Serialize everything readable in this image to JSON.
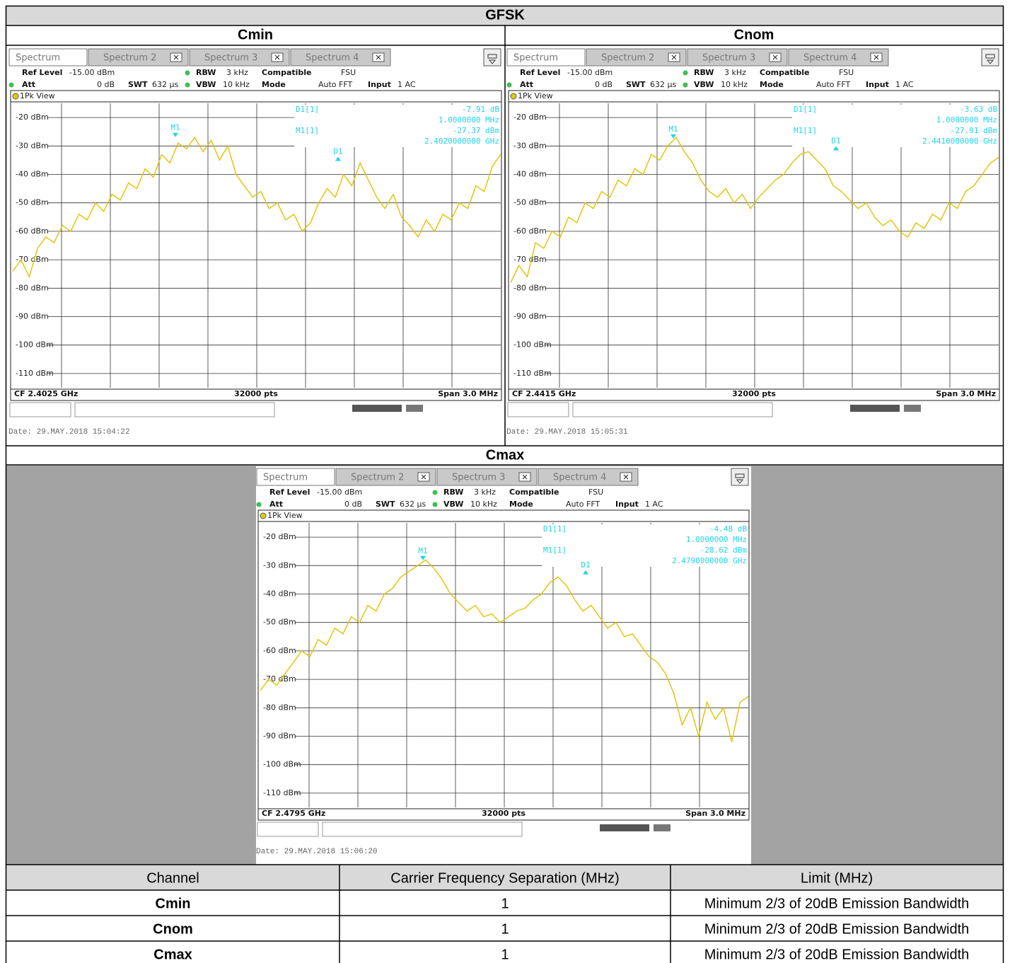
{
  "title": "GFSK",
  "analyzer": {
    "tabs": [
      "Spectrum",
      "Spectrum 2",
      "Spectrum 3",
      "Spectrum 4"
    ],
    "info": [
      {
        "label": "Ref Level",
        "value": "-15.00 dBm"
      },
      {
        "label": "RBW",
        "value": "3 kHz"
      },
      {
        "label": "Compatible",
        "value": "FSU"
      },
      {
        "label": "Att",
        "value": "0 dB"
      },
      {
        "label": "SWT",
        "value": "632 µs"
      },
      {
        "label": "VBW",
        "value": "10 kHz"
      },
      {
        "label": "Mode",
        "value": "Auto FFT"
      },
      {
        "label": "Input",
        "value": "1 AC"
      }
    ],
    "view": "1Pk View",
    "points": "32000 pts",
    "marker_names": {
      "m1": "M1",
      "d1": "D1",
      "m1_row": "M1[1]",
      "d1_row": "D1[1]"
    },
    "ylim": [
      -115,
      -15
    ],
    "yticks": [
      {
        "value": -20,
        "label": "-20 dBm"
      },
      {
        "value": -30,
        "label": "-30 dBm"
      },
      {
        "value": -40,
        "label": "-40 dBm"
      },
      {
        "value": -50,
        "label": "-50 dBm"
      },
      {
        "value": -60,
        "label": "-60 dBm"
      },
      {
        "value": -70,
        "label": "-70 dBm"
      },
      {
        "value": -80,
        "label": "-80 dBm"
      },
      {
        "value": -90,
        "label": "-90 dBm"
      },
      {
        "value": -100,
        "label": "-100 dBm"
      },
      {
        "value": -110,
        "label": "-110 dBm"
      }
    ]
  },
  "panels": [
    {
      "title": "Cmin",
      "cf": {
        "value": 2.4025,
        "label": "CF 2.4025 GHz"
      },
      "span": {
        "value": 3.0,
        "label": "Span 3.0 MHz"
      },
      "d1": {
        "value": -7.91,
        "label": "-7.91 dB"
      },
      "d1_offset": {
        "value": 1.0,
        "label": "1.0000000 MHz"
      },
      "m1": {
        "value": -27.37,
        "label": "-27.37 dBm"
      },
      "m1_freq": {
        "value": 2.402,
        "label": "2.4020000000 GHz"
      },
      "date": "Date: 29.MAY.2018  15:04:22",
      "trace": [
        -74,
        -70,
        -76,
        -66,
        -62,
        -64,
        -58,
        -60,
        -54,
        -56,
        -50,
        -53,
        -47,
        -49,
        -43,
        -45,
        -38,
        -41,
        -33,
        -36,
        -29,
        -31,
        -27,
        -32,
        -28,
        -35,
        -30,
        -40,
        -44,
        -48,
        -46,
        -52,
        -50,
        -56,
        -54,
        -60,
        -57,
        -50,
        -45,
        -48,
        -40,
        -44,
        -36,
        -42,
        -48,
        -52,
        -47,
        -55,
        -58,
        -62,
        -56,
        -60,
        -54,
        -56,
        -50,
        -52,
        -44,
        -46,
        -37,
        -33
      ]
    },
    {
      "title": "Cnom",
      "cf": {
        "value": 2.4415,
        "label": "CF 2.4415 GHz"
      },
      "span": {
        "value": 3.0,
        "label": "Span 3.0 MHz"
      },
      "d1": {
        "value": -3.63,
        "label": "-3.63 dB"
      },
      "d1_offset": {
        "value": 1.0,
        "label": "1.0000000 MHz"
      },
      "m1": {
        "value": -27.91,
        "label": "-27.91 dBm"
      },
      "m1_freq": {
        "value": 2.441,
        "label": "2.4410000000 GHz"
      },
      "date": "Date: 29.MAY.2018  15:05:31",
      "trace": [
        -78,
        -72,
        -76,
        -64,
        -66,
        -60,
        -62,
        -55,
        -57,
        -50,
        -52,
        -46,
        -48,
        -42,
        -44,
        -38,
        -40,
        -33,
        -35,
        -30,
        -27,
        -32,
        -36,
        -42,
        -46,
        -48,
        -45,
        -50,
        -47,
        -52,
        -48,
        -45,
        -42,
        -40,
        -36,
        -33,
        -32,
        -35,
        -38,
        -44,
        -46,
        -49,
        -52,
        -50,
        -55,
        -58,
        -56,
        -60,
        -62,
        -57,
        -59,
        -54,
        -56,
        -50,
        -52,
        -46,
        -44,
        -40,
        -36,
        -34
      ]
    },
    {
      "title": "Cmax",
      "cf": {
        "value": 2.4795,
        "label": "CF 2.4795 GHz"
      },
      "span": {
        "value": 3.0,
        "label": "Span 3.0 MHz"
      },
      "d1": {
        "value": -4.48,
        "label": "-4.48 dB"
      },
      "d1_offset": {
        "value": 1.0,
        "label": "1.0000000 MHz"
      },
      "m1": {
        "value": -28.62,
        "label": "-28.62 dBm"
      },
      "m1_freq": {
        "value": 2.479,
        "label": "2.4790000000 GHz"
      },
      "date": "Date: 29.MAY.2018  15:06:20",
      "trace": [
        -74,
        -70,
        -72,
        -68,
        -64,
        -60,
        -62,
        -56,
        -58,
        -52,
        -54,
        -48,
        -50,
        -44,
        -46,
        -40,
        -38,
        -34,
        -32,
        -30,
        -28,
        -31,
        -35,
        -40,
        -43,
        -46,
        -44,
        -48,
        -47,
        -50,
        -48,
        -46,
        -45,
        -42,
        -40,
        -36,
        -34,
        -37,
        -42,
        -46,
        -44,
        -48,
        -52,
        -50,
        -55,
        -54,
        -58,
        -62,
        -64,
        -68,
        -75,
        -86,
        -80,
        -90,
        -78,
        -84,
        -80,
        -92,
        -78,
        -76
      ]
    }
  ],
  "table": {
    "header": [
      "Channel",
      "Carrier Frequency Separation (MHz)",
      "Limit (MHz)"
    ],
    "rows": [
      [
        "Cmin",
        1,
        "Minimum 2/3 of 20dB Emission Bandwidth"
      ],
      [
        "Cnom",
        1,
        "Minimum 2/3 of 20dB Emission Bandwidth"
      ],
      [
        "Cmax",
        1,
        "Minimum 2/3 of 20dB Emission Bandwidth"
      ]
    ]
  }
}
